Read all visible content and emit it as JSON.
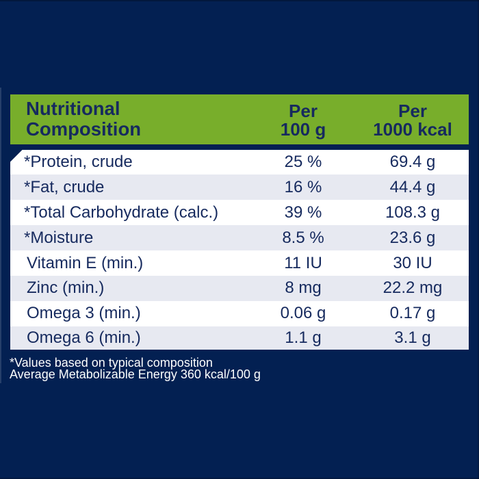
{
  "header": {
    "title_line1": "Nutritional",
    "title_line2": "Composition",
    "col2_line1": "Per",
    "col2_line2": "100 g",
    "col3_line1": "Per",
    "col3_line2": "1000 kcal"
  },
  "table": {
    "rows": [
      {
        "label": "*Protein, crude",
        "per100": "25 %",
        "per1000": "69.4 g"
      },
      {
        "label": "*Fat, crude",
        "per100": "16 %",
        "per1000": "44.4 g"
      },
      {
        "label": "*Total Carbohydrate (calc.)",
        "per100": "39 %",
        "per1000": "108.3 g"
      },
      {
        "label": "*Moisture",
        "per100": "8.5 %",
        "per1000": "23.6 g"
      },
      {
        "label": "Vitamin E (min.)",
        "per100": "11 IU",
        "per1000": "30 IU"
      },
      {
        "label": "Zinc (min.)",
        "per100": "8 mg",
        "per1000": "22.2 mg"
      },
      {
        "label": "Omega 3 (min.)",
        "per100": "0.06 g",
        "per1000": "0.17 g"
      },
      {
        "label": "Omega 6 (min.)",
        "per100": "1.1 g",
        "per1000": "3.1 g"
      }
    ]
  },
  "footnotes": {
    "line1": "*Values based on typical composition",
    "line2": "Average Metabolizable Energy 360 kcal/100 g"
  },
  "colors": {
    "navy": "#032052",
    "green": "#78ae2b",
    "rowAlt": "#e7e9f1",
    "text": "#162a5e"
  }
}
